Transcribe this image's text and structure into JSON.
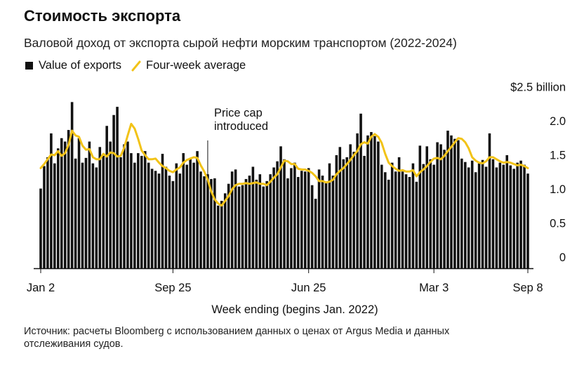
{
  "title": "Стоимость экспорта",
  "subtitle": "Валовой доход от экспорта сырой нефти морским транспортом (2022-2024)",
  "legend": [
    {
      "label": "Value of exports",
      "color": "#111111"
    },
    {
      "label": "Four-week average",
      "color": "#f2c318"
    }
  ],
  "source": "Источник: расчеты Bloomberg с использованием данных о ценах от Argus Media и данных отслеживания судов.",
  "chart_data": {
    "type": "bar",
    "xlabel": "Week ending (begins Jan. 2022)",
    "ylabel": "",
    "ylim": [
      0,
      2.5
    ],
    "yticks": [
      0,
      0.5,
      1.0,
      1.5,
      2.0
    ],
    "ytick_labels": [
      "0",
      "0.5",
      "1.0",
      "1.5",
      "2.0"
    ],
    "ytop_label": "$2.5 billion",
    "xticks": [
      {
        "label": "Jan 2",
        "index": 0
      },
      {
        "label": "Sep 25",
        "index": 38
      },
      {
        "label": "Jun 25",
        "index": 77
      },
      {
        "label": "Mar 3",
        "index": 113
      },
      {
        "label": "Sep 8",
        "index": 140
      }
    ],
    "annotation": {
      "text": [
        "Price cap",
        "introduced"
      ],
      "index": 48
    },
    "grid": false,
    "legend_position": "top-left",
    "series": [
      {
        "name": "Value of exports",
        "type": "bar",
        "values": [
          1.17,
          1.5,
          1.63,
          1.98,
          1.54,
          1.76,
          1.91,
          1.86,
          2.03,
          2.44,
          1.61,
          1.91,
          1.55,
          1.62,
          1.86,
          1.54,
          1.48,
          1.78,
          1.65,
          2.09,
          1.86,
          2.25,
          2.37,
          1.63,
          1.82,
          1.86,
          1.69,
          1.55,
          1.69,
          1.65,
          1.72,
          1.55,
          1.46,
          1.43,
          1.39,
          1.68,
          1.49,
          1.36,
          1.28,
          1.54,
          1.39,
          1.69,
          1.52,
          1.61,
          1.55,
          1.72,
          1.42,
          1.35,
          1.38,
          1.31,
          1.32,
          0.92,
          0.99,
          1.1,
          1.24,
          1.42,
          1.45,
          1.2,
          1.22,
          1.31,
          1.36,
          1.49,
          1.3,
          1.38,
          1.2,
          1.28,
          1.38,
          1.48,
          1.57,
          1.79,
          1.6,
          1.32,
          1.47,
          1.55,
          1.34,
          1.43,
          1.42,
          1.47,
          1.22,
          1.02,
          1.45,
          1.36,
          1.25,
          1.54,
          1.36,
          1.66,
          1.78,
          1.6,
          1.63,
          1.82,
          1.71,
          1.98,
          2.27,
          1.65,
          1.95,
          2.0,
          1.94,
          1.86,
          1.52,
          1.41,
          1.3,
          1.55,
          1.42,
          1.63,
          1.42,
          1.38,
          1.34,
          1.54,
          1.27,
          1.8,
          1.53,
          1.79,
          1.6,
          1.52,
          1.85,
          1.82,
          1.74,
          2.02,
          1.95,
          1.9,
          1.88,
          1.61,
          1.56,
          1.48,
          1.58,
          1.41,
          1.54,
          1.59,
          1.49,
          1.98,
          1.6,
          1.48,
          1.55,
          1.52,
          1.66,
          1.51,
          1.46,
          1.55,
          1.58,
          1.52,
          1.39
        ]
      },
      {
        "name": "Four-week average",
        "type": "line",
        "color": "#f2c318",
        "values": [
          1.47,
          1.53,
          1.6,
          1.67,
          1.66,
          1.72,
          1.65,
          1.69,
          1.81,
          2.02,
          1.95,
          1.93,
          1.8,
          1.74,
          1.75,
          1.63,
          1.6,
          1.6,
          1.68,
          1.64,
          1.7,
          1.69,
          1.64,
          1.65,
          1.77,
          1.95,
          2.12,
          2.05,
          1.9,
          1.73,
          1.66,
          1.6,
          1.6,
          1.61,
          1.55,
          1.5,
          1.47,
          1.43,
          1.41,
          1.45,
          1.48,
          1.55,
          1.59,
          1.61,
          1.63,
          1.62,
          1.51,
          1.42,
          1.3,
          1.13,
          1.01,
          0.95,
          0.92,
          0.99,
          1.06,
          1.16,
          1.22,
          1.24,
          1.24,
          1.25,
          1.24,
          1.25,
          1.26,
          1.24,
          1.24,
          1.22,
          1.27,
          1.33,
          1.38,
          1.48,
          1.58,
          1.57,
          1.53,
          1.53,
          1.46,
          1.45,
          1.45,
          1.43,
          1.4,
          1.35,
          1.28,
          1.28,
          1.26,
          1.27,
          1.3,
          1.38,
          1.43,
          1.47,
          1.53,
          1.59,
          1.66,
          1.72,
          1.82,
          1.85,
          1.83,
          1.93,
          1.97,
          1.93,
          1.84,
          1.68,
          1.55,
          1.5,
          1.46,
          1.43,
          1.44,
          1.42,
          1.42,
          1.44,
          1.35,
          1.41,
          1.45,
          1.5,
          1.56,
          1.61,
          1.62,
          1.6,
          1.65,
          1.72,
          1.78,
          1.85,
          1.91,
          1.9,
          1.85,
          1.76,
          1.63,
          1.58,
          1.55,
          1.54,
          1.57,
          1.63,
          1.63,
          1.6,
          1.57,
          1.55,
          1.56,
          1.55,
          1.53,
          1.51,
          1.52,
          1.5,
          1.47
        ]
      }
    ]
  }
}
